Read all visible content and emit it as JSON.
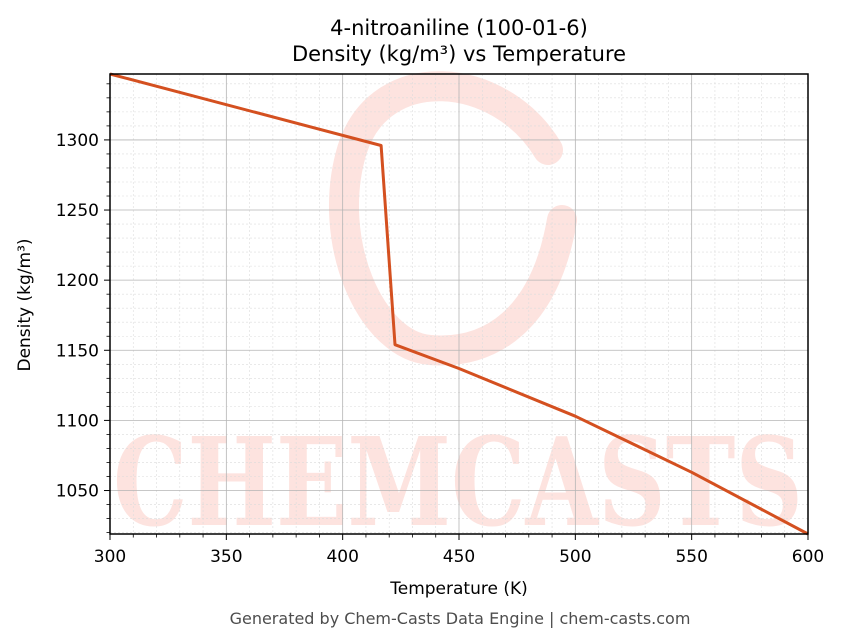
{
  "chart_data": {
    "type": "line",
    "title": "4-nitroaniline (100-01-6)",
    "subtitle": "Density (kg/m³) vs Temperature",
    "xlabel": "Temperature (K)",
    "ylabel": "Density (kg/m³)",
    "xlim": [
      300,
      600
    ],
    "ylim": [
      1019,
      1347
    ],
    "xticks": [
      300,
      350,
      400,
      450,
      500,
      550,
      600
    ],
    "yticks": [
      1050,
      1100,
      1150,
      1200,
      1250,
      1300
    ],
    "grid": true,
    "line_color": "#d45020",
    "series": [
      {
        "x": [
          300,
          416.5,
          422.5,
          450,
          500,
          550,
          600
        ],
        "y": [
          1347,
          1296,
          1154,
          1137,
          1103,
          1063,
          1019
        ]
      }
    ]
  },
  "watermark": {
    "text": "CHEMCASTS",
    "color": "#fde3df"
  },
  "footer": "Generated by Chem-Casts Data Engine | chem-casts.com"
}
